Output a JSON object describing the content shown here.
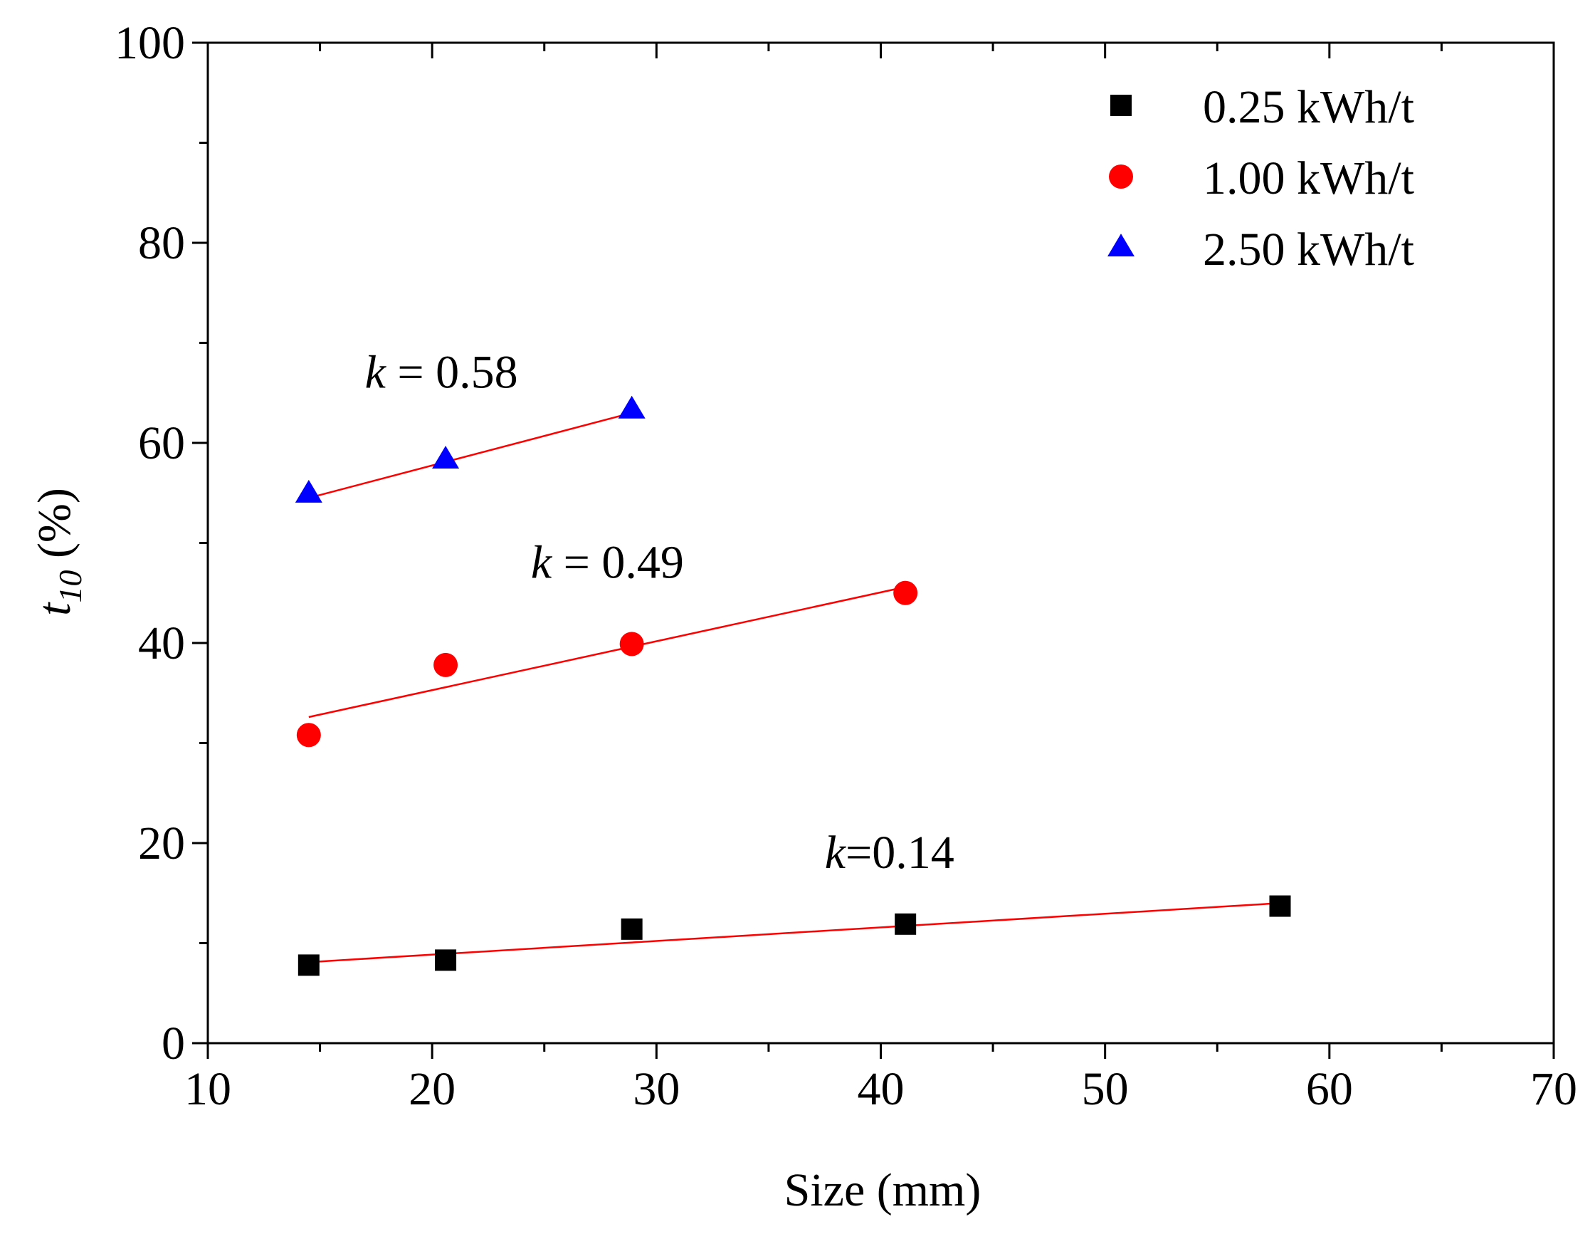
{
  "chart_data": {
    "type": "scatter",
    "title": "",
    "xlabel": "Size (mm)",
    "ylabel_main": "t",
    "ylabel_sub": "10",
    "ylabel_unit": " (%)",
    "xlim": [
      10,
      70
    ],
    "ylim": [
      0,
      100
    ],
    "xticks": [
      10,
      20,
      30,
      40,
      50,
      60,
      70
    ],
    "yticks": [
      0,
      20,
      40,
      60,
      80,
      100
    ],
    "xtick_labels": [
      "10",
      "20",
      "30",
      "40",
      "50",
      "60",
      "70"
    ],
    "ytick_labels": [
      "0",
      "20",
      "40",
      "60",
      "80",
      "100"
    ],
    "grid": false,
    "legend_position": "top-right",
    "series": [
      {
        "name": "0.25 kWh/t",
        "marker": "square",
        "color": "#000000",
        "x": [
          14.5,
          20.6,
          28.9,
          41.1,
          57.8
        ],
        "y": [
          7.8,
          8.3,
          11.4,
          11.9,
          13.7
        ],
        "fit": {
          "x": [
            14.5,
            57.8
          ],
          "y": [
            8.1,
            14.0
          ],
          "color": "#ff0000"
        },
        "annotation": {
          "italic": "k",
          "text": "=0.14",
          "at": [
            37.5,
            17.5
          ]
        }
      },
      {
        "name": "1.00 kWh/t",
        "marker": "circle",
        "color": "#ff0000",
        "x": [
          14.5,
          20.6,
          28.9,
          41.1
        ],
        "y": [
          30.8,
          37.8,
          39.9,
          45.0
        ],
        "fit": {
          "x": [
            14.5,
            41.1
          ],
          "y": [
            32.6,
            45.6
          ],
          "color": "#ff0000"
        },
        "annotation": {
          "italic": "k",
          "text": " = 0.49",
          "at": [
            24.4,
            46.5
          ]
        }
      },
      {
        "name": "2.50 kWh/t",
        "marker": "triangle",
        "color": "#0000ff",
        "x": [
          14.5,
          20.6,
          28.9
        ],
        "y": [
          54.9,
          58.3,
          63.3
        ],
        "fit": {
          "x": [
            14.5,
            28.9
          ],
          "y": [
            54.5,
            63.0
          ],
          "color": "#ff0000"
        },
        "annotation": {
          "italic": "k",
          "text": " = 0.58",
          "at": [
            17.0,
            65.5
          ]
        }
      }
    ]
  }
}
